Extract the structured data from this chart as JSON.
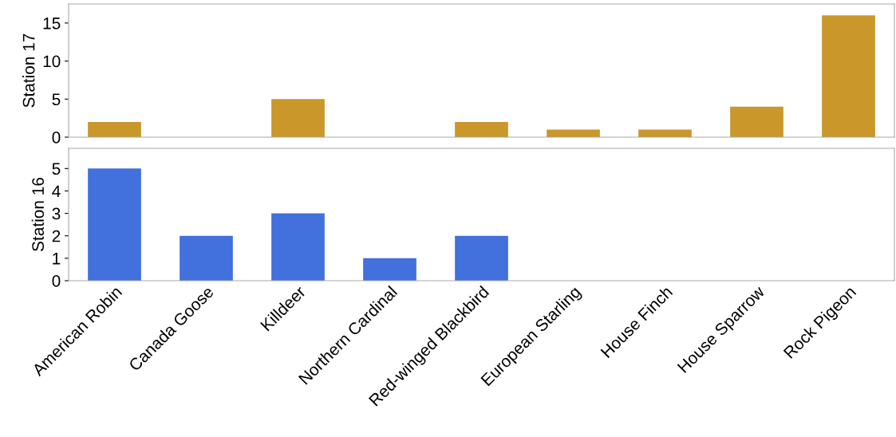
{
  "chart_data": [
    {
      "type": "bar",
      "ylabel": "Station 17",
      "series": [
        {
          "color": "#c9972a",
          "values": [
            2,
            0,
            5,
            0,
            2,
            1,
            1,
            4,
            16
          ]
        }
      ],
      "ylim": [
        0,
        17.5
      ],
      "yticks": [
        0,
        5,
        10,
        15
      ],
      "tick_labels": "y",
      "grid": false,
      "legend": false
    },
    {
      "type": "bar",
      "ylabel": "Station 16",
      "categories": [
        "American Robin",
        "Canada Goose",
        "Killdeer",
        "Northern Cardinal",
        "Red-winged Blackbird",
        "European Starling",
        "House Finch",
        "House Sparrow",
        "Rock Pigeon"
      ],
      "series": [
        {
          "color": "#4270dd",
          "values": [
            5,
            2,
            3,
            1,
            2,
            0,
            0,
            0,
            0
          ]
        }
      ],
      "ylim": [
        0,
        5.9
      ],
      "yticks": [
        0,
        1,
        2,
        3,
        4,
        5
      ],
      "grid": false,
      "legend": false
    }
  ]
}
